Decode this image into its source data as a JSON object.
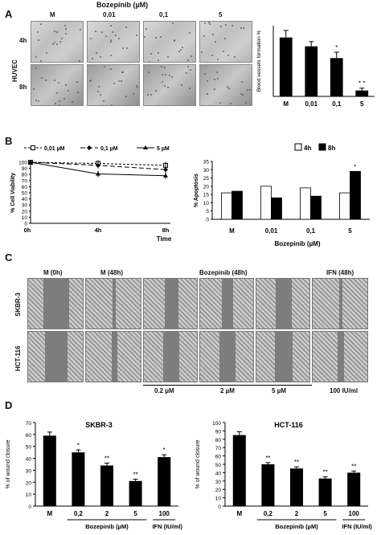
{
  "panelA": {
    "letter": "A",
    "title": "Bozepinib (µM)",
    "cols": [
      "M",
      "0,01",
      "0,1",
      "5"
    ],
    "rows": [
      "4h",
      "8h"
    ],
    "side_label": "HUVEC",
    "chart_data": {
      "type": "bar",
      "categories": [
        "M",
        "0,01",
        "0,1",
        "5"
      ],
      "values": [
        100,
        85,
        65,
        10
      ],
      "errors": [
        12,
        8,
        10,
        4
      ],
      "significance": [
        "",
        "",
        "*",
        "* *"
      ],
      "ylabel": "Blood vessels formation %",
      "ylim": [
        0,
        120
      ]
    }
  },
  "panelB": {
    "letter": "B",
    "viability": {
      "type": "line",
      "x": [
        "0h",
        "4h",
        "8h"
      ],
      "ylabel": "% Cell Viability",
      "xlabel": "Time",
      "ylim": [
        0,
        100
      ],
      "yticks": [
        0,
        10,
        20,
        30,
        40,
        50,
        60,
        70,
        80,
        90,
        100
      ],
      "series": [
        {
          "name": "0,01 µM",
          "values": [
            100,
            98,
            95
          ]
        },
        {
          "name": "0,1 µM",
          "values": [
            100,
            95,
            88
          ]
        },
        {
          "name": "5 µM",
          "values": [
            100,
            81,
            78
          ]
        }
      ]
    },
    "apoptosis": {
      "type": "bar",
      "categories": [
        "M",
        "0,01",
        "0,1",
        "5"
      ],
      "ylabel": "% Apoptosis",
      "xlabel": "Bozepinib (µM)",
      "ylim": [
        0,
        35
      ],
      "yticks": [
        0,
        5,
        10,
        15,
        20,
        25,
        30,
        35
      ],
      "series": [
        {
          "name": "4h",
          "values": [
            16,
            20,
            19,
            16
          ]
        },
        {
          "name": "8h",
          "values": [
            17,
            13,
            14,
            29
          ]
        }
      ],
      "significance_5_8h": "*"
    }
  },
  "panelC": {
    "letter": "C",
    "headers": [
      "M (0h)",
      "M (48h)",
      "Bozepinib (48h)",
      "IFN (48h)"
    ],
    "rows": [
      "SKBR-3",
      "HCT-116"
    ],
    "bottom_labels": [
      "0.2 µM",
      "2 µM",
      "5 µM",
      "100 IU/ml"
    ]
  },
  "panelD": {
    "letter": "D",
    "charts": [
      {
        "type": "bar",
        "title": "SKBR-3",
        "categories": [
          "M",
          "0,2",
          "2",
          "5",
          "100"
        ],
        "values": [
          59,
          45,
          34,
          21,
          41
        ],
        "errors": [
          3,
          2,
          2,
          1.5,
          2
        ],
        "significance": [
          "",
          "*",
          "**",
          "**",
          "*"
        ],
        "ylabel": "% of wound closure",
        "ylim": [
          0,
          70
        ],
        "yticks": [
          0,
          10,
          20,
          30,
          40,
          50,
          60,
          70
        ],
        "group_label": "Bozepinib (µM)",
        "ifn_label": "IFN (IU/ml)"
      },
      {
        "type": "bar",
        "title": "HCT-116",
        "categories": [
          "M",
          "0,2",
          "2",
          "5",
          "100"
        ],
        "values": [
          85,
          50,
          45,
          33,
          40
        ],
        "errors": [
          4,
          2,
          2,
          2,
          2
        ],
        "significance": [
          "",
          "**",
          "**",
          "**",
          "**"
        ],
        "ylabel": "% of wound closure",
        "ylim": [
          0,
          100
        ],
        "yticks": [
          0,
          10,
          20,
          30,
          40,
          50,
          60,
          70,
          80,
          90,
          100
        ],
        "group_label": "Bozepinib (µM)",
        "ifn_label": "IFN (IU/ml)"
      }
    ]
  }
}
